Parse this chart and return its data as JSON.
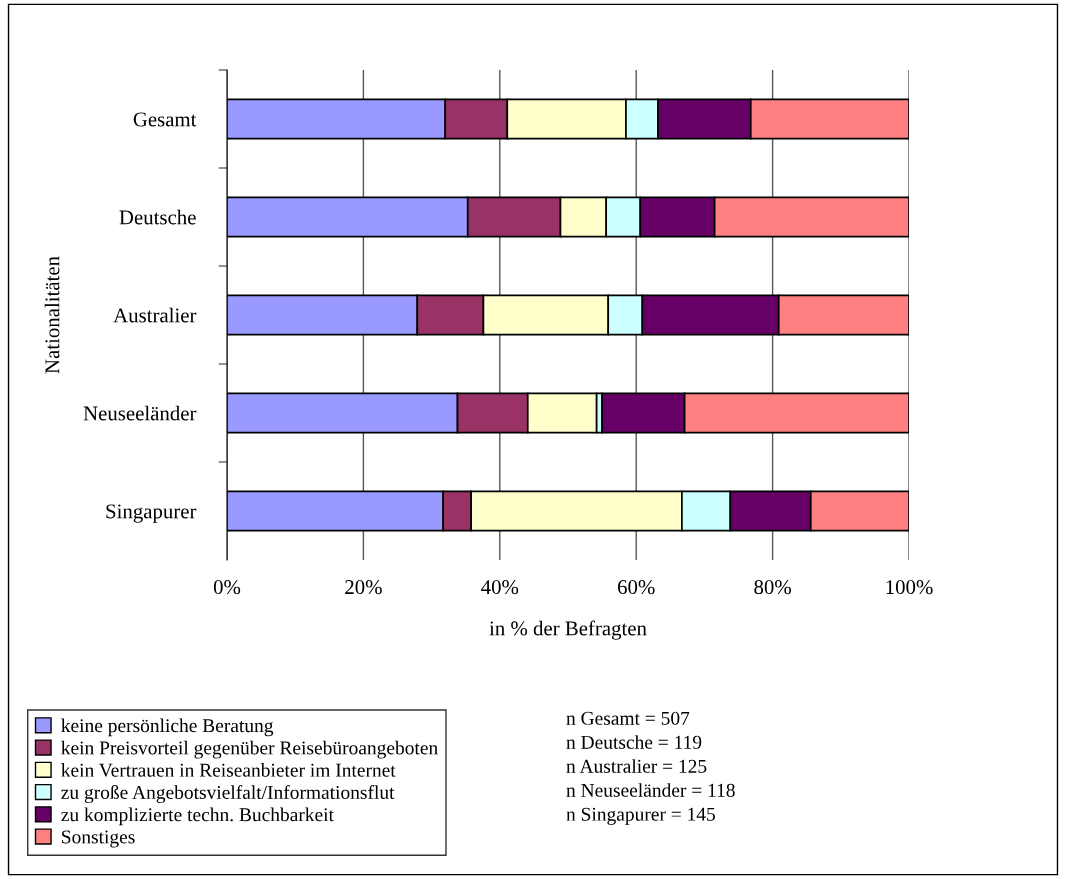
{
  "chart_data": {
    "type": "bar",
    "orientation": "horizontal",
    "stacked": true,
    "categories": [
      "Gesamt",
      "Deutsche",
      "Australier",
      "Neuseeländer",
      "Singapurer"
    ],
    "series": [
      {
        "name": "keine persönliche Beratung",
        "color": "#9999ff",
        "values": [
          32.0,
          35.3,
          27.9,
          33.8,
          31.7
        ]
      },
      {
        "name": "kein Preisvorteil gegenüber Reisebüroangeboten",
        "color": "#993366",
        "values": [
          9.1,
          13.6,
          9.7,
          10.3,
          4.1
        ]
      },
      {
        "name": "kein Vertrauen in Reiseanbieter im Internet",
        "color": "#ffffcc",
        "values": [
          17.4,
          6.7,
          18.3,
          10.1,
          30.9
        ]
      },
      {
        "name": "zu große Angebotsvielfalt/Informationsflut",
        "color": "#ccffff",
        "values": [
          4.7,
          5.0,
          5.0,
          0.8,
          7.1
        ]
      },
      {
        "name": "zu komplizierte techn. Buchbarkeit",
        "color": "#660066",
        "values": [
          13.6,
          10.9,
          20.0,
          12.1,
          11.8
        ]
      },
      {
        "name": "Sonstiges",
        "color": "#ff8080",
        "values": [
          23.2,
          28.5,
          19.1,
          32.9,
          14.4
        ]
      }
    ],
    "xlim": [
      0,
      100
    ],
    "xticks": [
      {
        "value": 0,
        "label": "0%"
      },
      {
        "value": 20,
        "label": "20%"
      },
      {
        "value": 40,
        "label": "40%"
      },
      {
        "value": 60,
        "label": "60%"
      },
      {
        "value": 80,
        "label": "80%"
      },
      {
        "value": 100,
        "label": "100%"
      }
    ],
    "xlabel": "in % der Befragten",
    "ylabel": "Nationalitäten",
    "grid": "x",
    "legend": "bottom left",
    "annotations": [
      "n Gesamt = 507",
      "n Deutsche = 119",
      "n Australier = 125",
      "n Neuseeländer = 118",
      "n Singapurer = 145"
    ]
  }
}
